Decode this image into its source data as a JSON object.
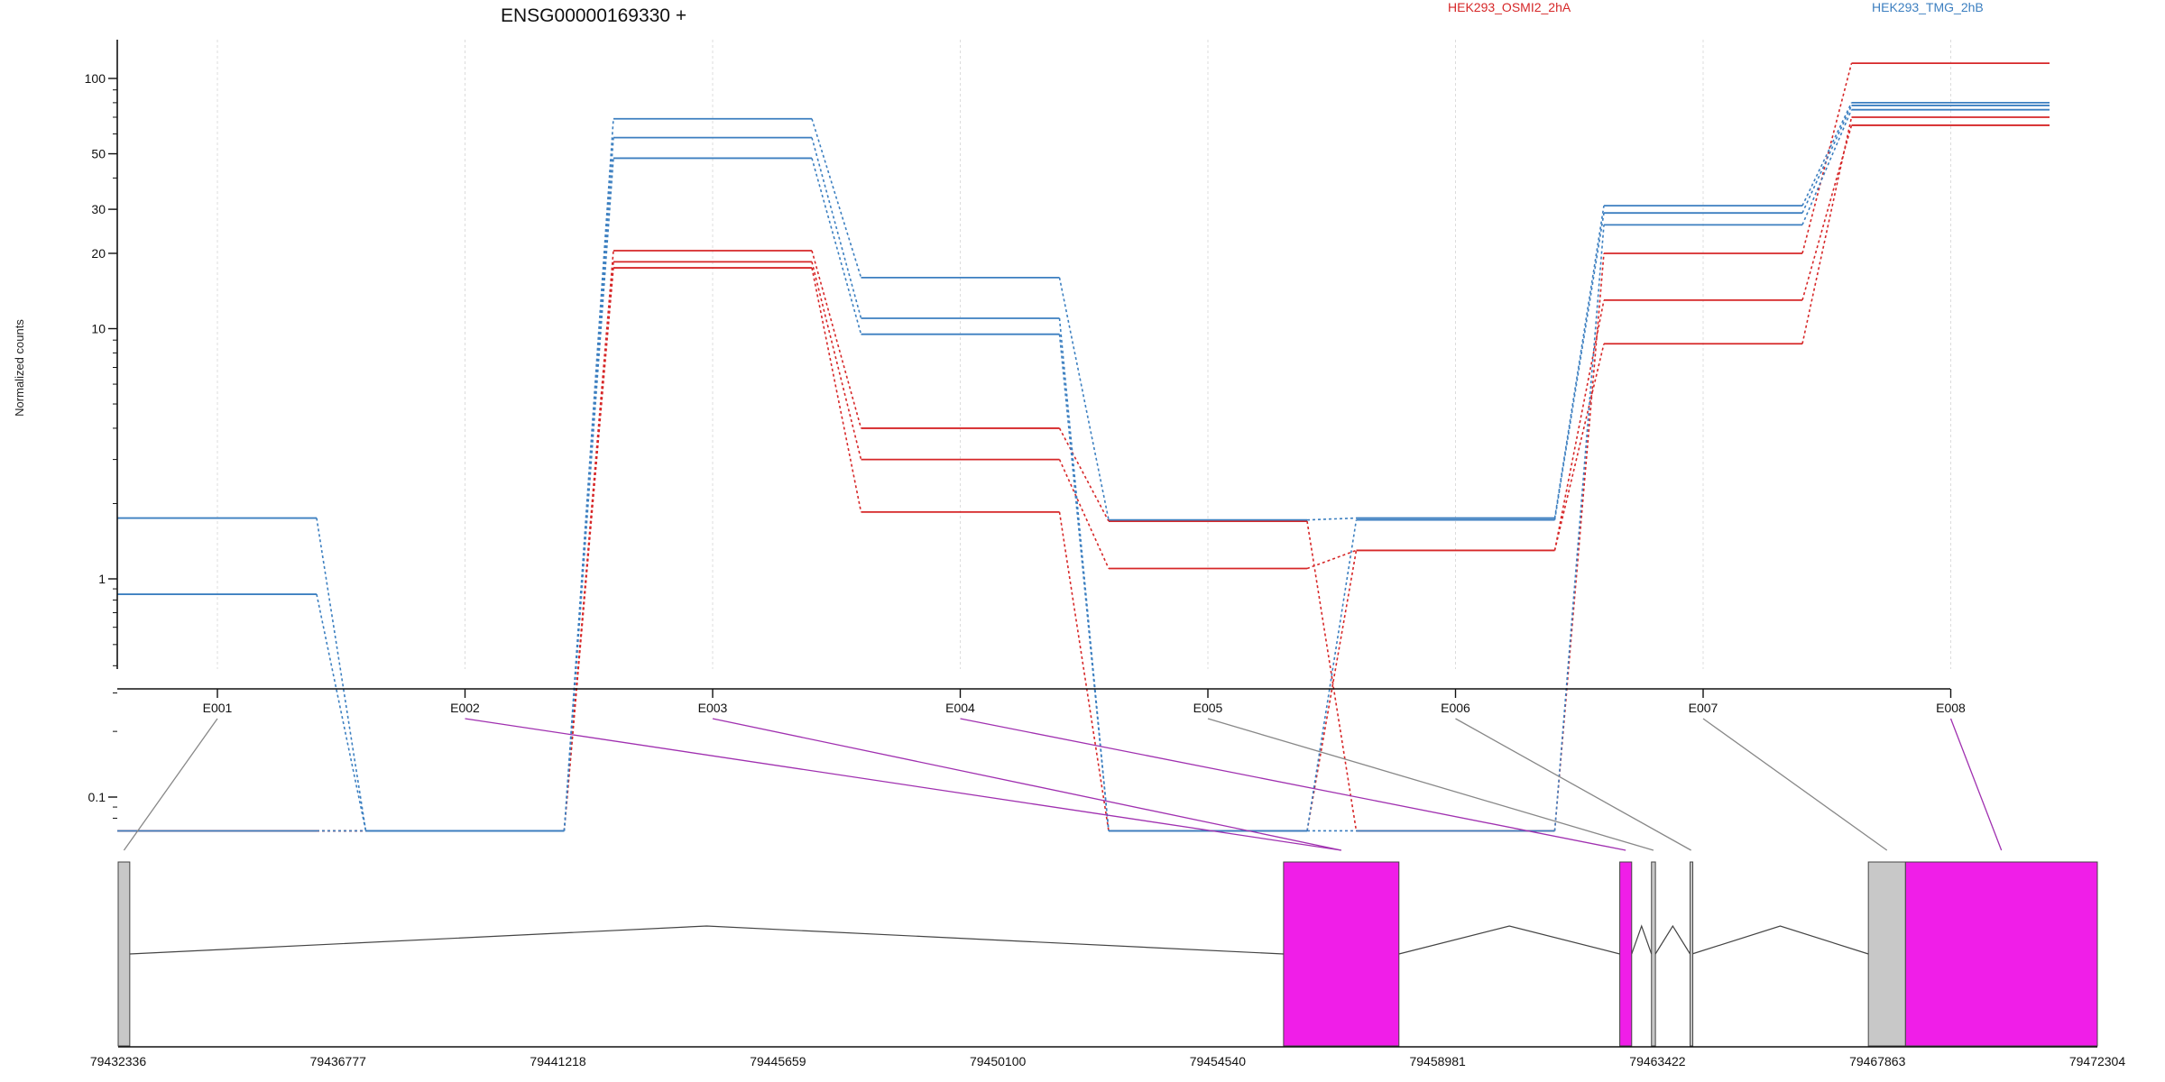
{
  "chart_data": {
    "type": "line",
    "title": "ENSG00000169330 +",
    "ylabel": "Normalized counts",
    "yscale": "log",
    "yticks": [
      "100",
      "50",
      "30",
      "20",
      "10",
      "1",
      "0.1"
    ],
    "grid": true,
    "legend_placement": "top-right",
    "categories": [
      "E001",
      "E002",
      "E003",
      "E004",
      "E005",
      "E006",
      "E007",
      "E008"
    ],
    "groups": [
      {
        "name": "HEK293_OSMI2_2hA",
        "color": "#d62728"
      },
      {
        "name": "HEK293_TMG_2hB",
        "color": "#3c7fc0"
      }
    ],
    "series": [
      {
        "group": 0,
        "values": [
          0.07,
          0.07,
          20.5,
          4.0,
          1.7,
          0.07,
          20.0,
          115
        ]
      },
      {
        "group": 0,
        "values": [
          0.07,
          0.07,
          18.5,
          3.0,
          1.1,
          1.3,
          13.0,
          65
        ]
      },
      {
        "group": 0,
        "values": [
          0.07,
          0.07,
          17.5,
          1.85,
          0.07,
          1.3,
          8.7,
          70
        ]
      },
      {
        "group": 1,
        "values": [
          1.75,
          0.07,
          69,
          16.0,
          1.72,
          1.75,
          31,
          80
        ]
      },
      {
        "group": 1,
        "values": [
          0.85,
          0.07,
          58,
          11.0,
          0.07,
          1.72,
          29,
          78
        ]
      },
      {
        "group": 1,
        "values": [
          0.07,
          0.07,
          48,
          9.5,
          0.07,
          0.07,
          26,
          75
        ]
      }
    ],
    "gene_model": {
      "coordinates": [
        "79432336",
        "79436777",
        "79441218",
        "79445659",
        "79450100",
        "79454540",
        "79458981",
        "79463422",
        "79467863",
        "79472304"
      ],
      "exons": [
        {
          "bin": "E001",
          "start": 79432336,
          "end": 79432570,
          "highlight": false
        },
        {
          "bin": "E002",
          "start": 79455870,
          "end": 79458200,
          "highlight": true
        },
        {
          "bin": "E003",
          "start": 79455870,
          "end": 79458200,
          "highlight": true
        },
        {
          "bin": "E004",
          "start": 79462660,
          "end": 79462900,
          "highlight": true
        },
        {
          "bin": "E005",
          "start": 79463300,
          "end": 79463380,
          "highlight": false
        },
        {
          "bin": "E006",
          "start": 79464080,
          "end": 79464120,
          "highlight": false
        },
        {
          "bin": "E007",
          "start": 79467680,
          "end": 79468430,
          "highlight": false
        },
        {
          "bin": "E008",
          "start": 79468430,
          "end": 79472304,
          "highlight": true
        }
      ],
      "colors": {
        "highlight": "#f01ee8",
        "plain": "#c8c8c8",
        "connector_plain": "#888888",
        "connector_highlight": "#a030b0"
      }
    }
  }
}
